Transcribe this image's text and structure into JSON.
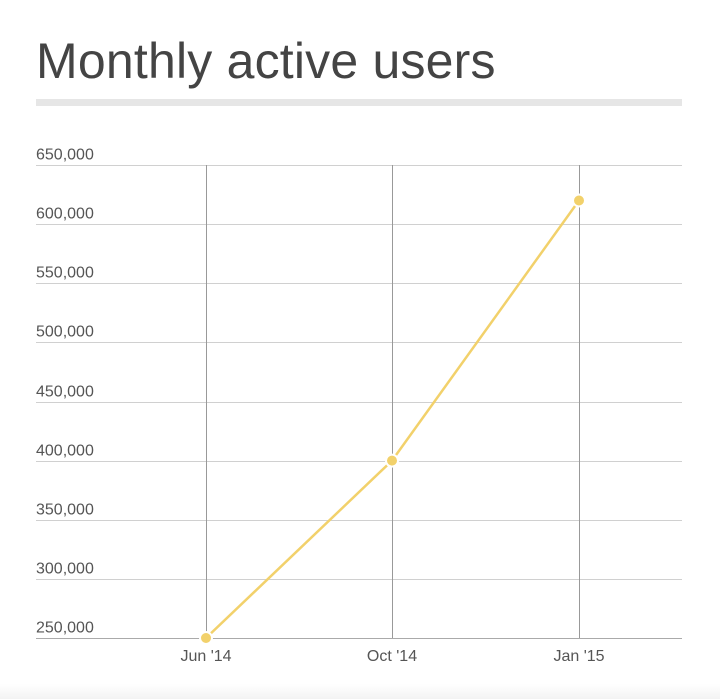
{
  "title": "Monthly active users",
  "chart_data": {
    "type": "line",
    "title": "Monthly active users",
    "xlabel": "",
    "ylabel": "",
    "categories": [
      "Jun '14",
      "Oct '14",
      "Jan '15"
    ],
    "series": [
      {
        "values": [
          250000,
          400000,
          620000
        ]
      }
    ],
    "ylim": [
      250000,
      650000
    ],
    "yticks": [
      250000,
      300000,
      350000,
      400000,
      450000,
      500000,
      550000,
      600000,
      650000
    ],
    "ytick_labels": [
      "250,000",
      "300,000",
      "350,000",
      "400,000",
      "450,000",
      "500,000",
      "550,000",
      "600,000",
      "650,000"
    ],
    "grid": true,
    "legend": "none",
    "colors": {
      "line": "#f2d16b",
      "grid": "#d0d0d0",
      "vgrid": "#999999",
      "axis_text": "#555555"
    }
  }
}
